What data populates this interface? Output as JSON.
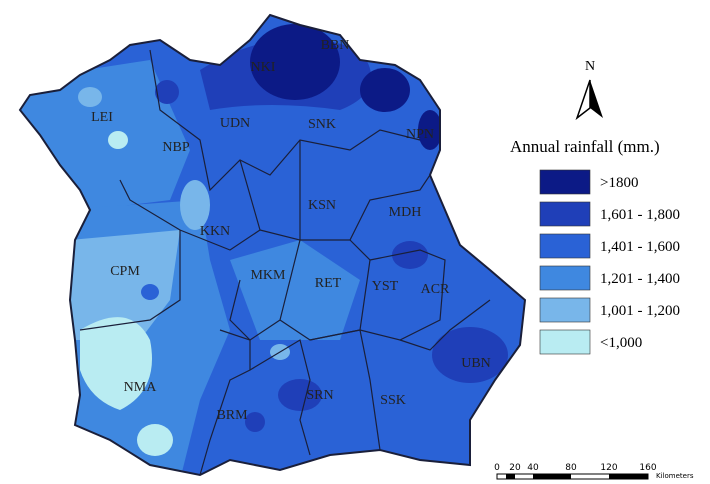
{
  "north": "N",
  "legend": {
    "title": "Annual rainfall (mm.)",
    "items": [
      {
        "label": ">1800",
        "color": "#0c1a86"
      },
      {
        "label": "1,601 - 1,800",
        "color": "#1f3fb8"
      },
      {
        "label": "1,401 - 1,600",
        "color": "#2a62d6"
      },
      {
        "label": "1,201 - 1,400",
        "color": "#3f88e0"
      },
      {
        "label": "1,001 - 1,200",
        "color": "#78b6ea"
      },
      {
        "label": "<1,000",
        "color": "#b9ecf2"
      }
    ]
  },
  "regions": [
    {
      "label": "BBN"
    },
    {
      "label": "NKI"
    },
    {
      "label": "LEI"
    },
    {
      "label": "NBP"
    },
    {
      "label": "UDN"
    },
    {
      "label": "SNK"
    },
    {
      "label": "NPN"
    },
    {
      "label": "KSN"
    },
    {
      "label": "MDH"
    },
    {
      "label": "KKN"
    },
    {
      "label": "CPM"
    },
    {
      "label": "MKM"
    },
    {
      "label": "RET"
    },
    {
      "label": "YST"
    },
    {
      "label": "ACR"
    },
    {
      "label": "UBN"
    },
    {
      "label": "NMA"
    },
    {
      "label": "BRM"
    },
    {
      "label": "SRN"
    },
    {
      "label": "SSK"
    }
  ],
  "scale_bar": {
    "ticks": [
      "0",
      "20",
      "40",
      "80",
      "120",
      "160"
    ],
    "unit": "Kilometers"
  }
}
